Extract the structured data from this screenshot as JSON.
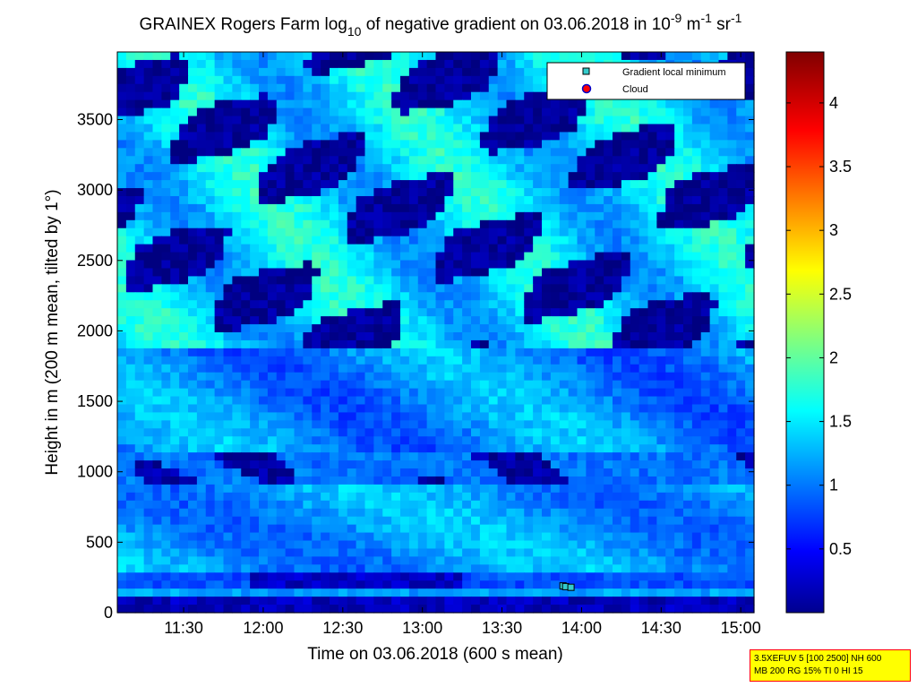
{
  "chart_data": {
    "type": "heatmap",
    "title": {
      "prefix": "GRAINEX Rogers Farm log",
      "sub": "10",
      "middle": " of negative gradient on 03.06.2018 in 10",
      "sup1": "-9",
      "unit1": " m",
      "sup2": "-1",
      "unit2": " sr",
      "sup3": "-1"
    },
    "xlabel": "Time on 03.06.2018 (600 s mean)",
    "ylabel": "Height in m (200 m mean, tilted by 1°)",
    "x_range": [
      "11:05",
      "15:05"
    ],
    "x_ticks": [
      "11:30",
      "12:00",
      "12:30",
      "13:00",
      "13:30",
      "14:00",
      "14:30",
      "15:00"
    ],
    "ylim": [
      0,
      3980
    ],
    "y_ticks": [
      0,
      500,
      1000,
      1500,
      2000,
      2500,
      3000,
      3500
    ],
    "colorbar": {
      "range": [
        0,
        4.4
      ],
      "colormap": "jet",
      "ticks": [
        0.5,
        1,
        1.5,
        2,
        2.5,
        3,
        3.5,
        4
      ]
    },
    "legend": {
      "position": "top-right",
      "entries": [
        {
          "label": "Gradient local minimum",
          "marker": "square",
          "color": "#33cccc"
        },
        {
          "label": "Cloud",
          "marker": "circle",
          "color": "#ff0000"
        }
      ]
    },
    "gradient_local_minimum_points": [
      {
        "time": "13:53",
        "height": 190
      },
      {
        "time": "13:54",
        "height": 185
      },
      {
        "time": "13:56",
        "height": 180
      }
    ]
  },
  "info_box": {
    "line1": "3.5XEFUV 5 [100 2500] NH 600",
    "line2": "MB 200 RG 15% TI 0 HI 15"
  }
}
